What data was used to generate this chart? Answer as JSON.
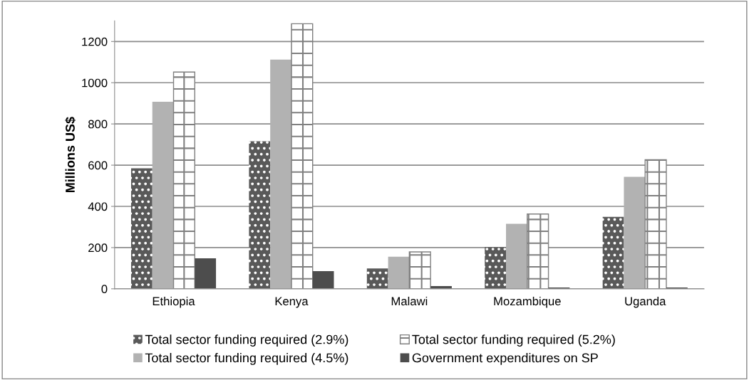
{
  "chart_data": {
    "type": "bar",
    "ylabel": "Millions US$",
    "categories": [
      "Ethiopia",
      "Kenya",
      "Malawi",
      "Mozambique",
      "Uganda"
    ],
    "series": [
      {
        "name": "Total sector funding required (2.9%)",
        "color": "#595959",
        "values": [
          585,
          716,
          99,
          202,
          349
        ]
      },
      {
        "name": "Total sector funding required (4.5%)",
        "color": "#b2b2b2",
        "values": [
          908,
          1112,
          156,
          315,
          543
        ]
      },
      {
        "name": "Total sector funding required (5.2%)",
        "color": "#808080",
        "values": [
          1052,
          1286,
          179,
          363,
          626
        ]
      },
      {
        "name": "Government expenditures on SP",
        "color": "#4d4d4d",
        "values": [
          148,
          86,
          13,
          6,
          6
        ]
      }
    ],
    "ylim": [
      0,
      1300
    ],
    "yticks": [
      0,
      200,
      400,
      600,
      800,
      1000,
      1200
    ],
    "grid": "y",
    "legend": "bottom"
  }
}
